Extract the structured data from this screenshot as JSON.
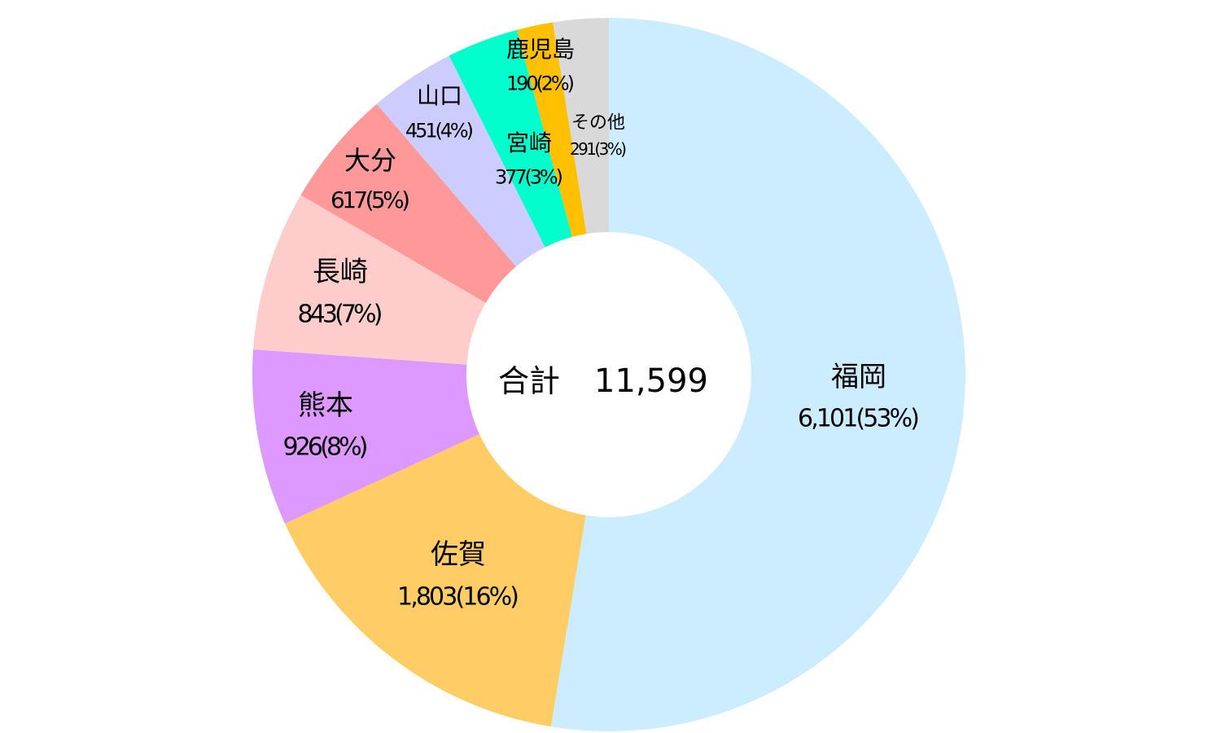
{
  "chart_data": {
    "type": "pie",
    "donut": true,
    "center_label": "合計",
    "center_value": "11,599",
    "total": 11599,
    "slices": [
      {
        "name": "福岡",
        "value": 6101,
        "label": "6,101(53%)",
        "color": "#CCECFF"
      },
      {
        "name": "佐賀",
        "value": 1803,
        "label": "1,803(16%)",
        "color": "#FFCC66"
      },
      {
        "name": "熊本",
        "value": 926,
        "label": "926(8%)",
        "color": "#DD99FF"
      },
      {
        "name": "長崎",
        "value": 843,
        "label": "843(7%)",
        "color": "#FFCCCC"
      },
      {
        "name": "大分",
        "value": 617,
        "label": "617(5%)",
        "color": "#FF9999"
      },
      {
        "name": "山口",
        "value": 451,
        "label": "451(4%)",
        "color": "#CCCCFF"
      },
      {
        "name": "宮崎",
        "value": 377,
        "label": "377(3%)",
        "color": "#00FFCC"
      },
      {
        "name": "鹿児島",
        "value": 190,
        "label": "190(2%)",
        "color": "#FFC000"
      },
      {
        "name": "その他",
        "value": 291,
        "label": "291(3%)",
        "color": "#D9D9D9"
      }
    ]
  }
}
